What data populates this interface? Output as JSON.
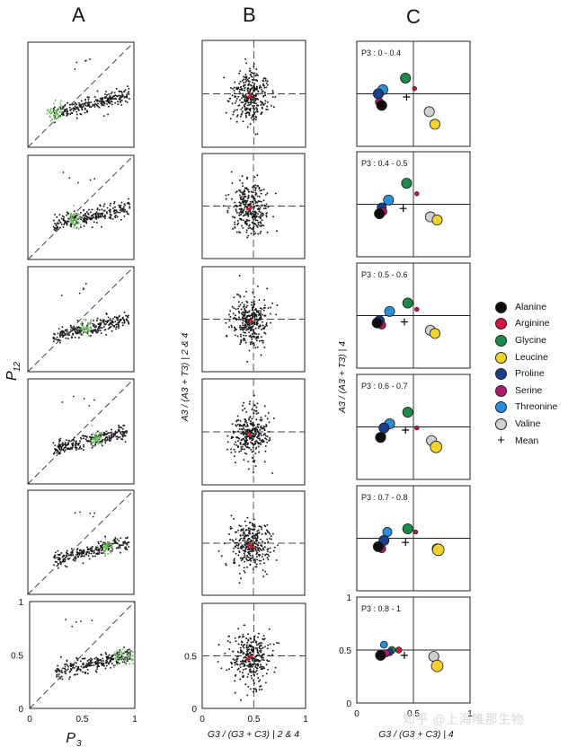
{
  "figure": {
    "column_letters": [
      "A",
      "B",
      "C"
    ]
  },
  "chart_data": [
    {
      "panel": "A",
      "type": "scatter",
      "xlabel": "P3",
      "ylabel": "P12",
      "xlim": [
        0,
        1
      ],
      "ylim": [
        0,
        1
      ],
      "x_ticks": [
        "0",
        "0.5",
        "1"
      ],
      "y_ticks": [
        "0",
        "0.5",
        "1"
      ],
      "reference_line": "y = x (dashed diagonal)",
      "series_colors": {
        "all_positions": "#1a1a1a",
        "highlight": "#6cbf5c"
      },
      "subplots": [
        {
          "highlight_x_range": [
            0.18,
            0.32
          ],
          "cloud_center": [
            0.5,
            0.45
          ]
        },
        {
          "highlight_x_range": [
            0.4,
            0.5
          ],
          "cloud_center": [
            0.52,
            0.45
          ]
        },
        {
          "highlight_x_range": [
            0.5,
            0.6
          ],
          "cloud_center": [
            0.53,
            0.46
          ]
        },
        {
          "highlight_x_range": [
            0.6,
            0.7
          ],
          "cloud_center": [
            0.55,
            0.46
          ]
        },
        {
          "highlight_x_range": [
            0.7,
            0.8
          ],
          "cloud_center": [
            0.57,
            0.47
          ]
        },
        {
          "highlight_x_range": [
            0.8,
            1.0
          ],
          "cloud_center": [
            0.58,
            0.47
          ]
        }
      ]
    },
    {
      "panel": "B",
      "type": "scatter",
      "xlabel": "G3 / (G3 + C3) | 2 & 4",
      "ylabel": "A3 / (A3 + T3) | 2 & 4",
      "xlim": [
        0,
        1
      ],
      "ylim": [
        0,
        1
      ],
      "x_ticks": [
        "0",
        "0.5",
        "1"
      ],
      "y_ticks": [
        "0",
        "0.5"
      ],
      "reference_lines": {
        "x": 0.5,
        "y": 0.5
      },
      "series_colors": {
        "points": "#1a1a1a",
        "center_mark": "#d11a2a"
      },
      "cloud_center": [
        0.47,
        0.48
      ],
      "subplot_count": 6
    },
    {
      "panel": "C",
      "type": "scatter",
      "xlabel": "G3 / (G3 + C3) | 4",
      "ylabel": "A3 / (A3 + T3) | 4",
      "xlim": [
        0,
        1
      ],
      "ylim": [
        0,
        1
      ],
      "x_ticks": [
        "0",
        "0.5",
        "1"
      ],
      "y_ticks": [
        "0",
        "0.5",
        "1"
      ],
      "reference_lines": {
        "x": 0.5,
        "y": 0.5
      },
      "legend": [
        {
          "name": "Alanine",
          "color": "#0d0d0d"
        },
        {
          "name": "Arginine",
          "color": "#d4143c"
        },
        {
          "name": "Glycine",
          "color": "#1e8a48"
        },
        {
          "name": "Leucine",
          "color": "#f1d22e"
        },
        {
          "name": "Proline",
          "color": "#1a3e8e"
        },
        {
          "name": "Serine",
          "color": "#b0196b"
        },
        {
          "name": "Threonine",
          "color": "#2a8ed8"
        },
        {
          "name": "Valine",
          "color": "#cfcfd6"
        },
        {
          "name": "Mean",
          "color": "#000000",
          "marker": "+"
        }
      ],
      "subplots": [
        {
          "label": "P3 : 0 - 0.4",
          "points": [
            {
              "aa": "Glycine",
              "x": 0.43,
              "y": 0.65,
              "size": 1.0
            },
            {
              "aa": "Arginine",
              "x": 0.51,
              "y": 0.55,
              "size": 0.4
            },
            {
              "aa": "Threonine",
              "x": 0.23,
              "y": 0.54,
              "size": 1.0
            },
            {
              "aa": "Proline",
              "x": 0.19,
              "y": 0.5,
              "size": 1.0
            },
            {
              "aa": "Serine",
              "x": 0.2,
              "y": 0.42,
              "size": 0.8
            },
            {
              "aa": "Alanine",
              "x": 0.22,
              "y": 0.39,
              "size": 1.0
            },
            {
              "aa": "Valine",
              "x": 0.64,
              "y": 0.33,
              "size": 1.0
            },
            {
              "aa": "Leucine",
              "x": 0.69,
              "y": 0.21,
              "size": 1.0
            }
          ],
          "mean": [
            0.44,
            0.47
          ]
        },
        {
          "label": "P3 : 0.4 - 0.5",
          "points": [
            {
              "aa": "Glycine",
              "x": 0.44,
              "y": 0.7,
              "size": 1.0
            },
            {
              "aa": "Arginine",
              "x": 0.53,
              "y": 0.6,
              "size": 0.4
            },
            {
              "aa": "Threonine",
              "x": 0.28,
              "y": 0.54,
              "size": 1.0
            },
            {
              "aa": "Proline",
              "x": 0.22,
              "y": 0.47,
              "size": 0.9
            },
            {
              "aa": "Serine",
              "x": 0.23,
              "y": 0.43,
              "size": 0.8
            },
            {
              "aa": "Alanine",
              "x": 0.2,
              "y": 0.41,
              "size": 1.0
            },
            {
              "aa": "Valine",
              "x": 0.65,
              "y": 0.38,
              "size": 1.0
            },
            {
              "aa": "Leucine",
              "x": 0.71,
              "y": 0.35,
              "size": 1.0
            }
          ],
          "mean": [
            0.41,
            0.46
          ]
        },
        {
          "label": "P3 : 0.5 - 0.6",
          "points": [
            {
              "aa": "Glycine",
              "x": 0.45,
              "y": 0.62,
              "size": 1.0
            },
            {
              "aa": "Arginine",
              "x": 0.53,
              "y": 0.56,
              "size": 0.4
            },
            {
              "aa": "Threonine",
              "x": 0.29,
              "y": 0.54,
              "size": 1.0
            },
            {
              "aa": "Proline",
              "x": 0.2,
              "y": 0.45,
              "size": 1.0
            },
            {
              "aa": "Serine",
              "x": 0.22,
              "y": 0.41,
              "size": 0.8
            },
            {
              "aa": "Alanine",
              "x": 0.18,
              "y": 0.43,
              "size": 1.0
            },
            {
              "aa": "Valine",
              "x": 0.65,
              "y": 0.36,
              "size": 1.0
            },
            {
              "aa": "Leucine",
              "x": 0.69,
              "y": 0.33,
              "size": 1.0
            }
          ],
          "mean": [
            0.42,
            0.44
          ]
        },
        {
          "label": "P3 : 0.6 - 0.7",
          "points": [
            {
              "aa": "Glycine",
              "x": 0.45,
              "y": 0.64,
              "size": 1.0
            },
            {
              "aa": "Arginine",
              "x": 0.53,
              "y": 0.49,
              "size": 0.4
            },
            {
              "aa": "Threonine",
              "x": 0.29,
              "y": 0.53,
              "size": 1.0
            },
            {
              "aa": "Proline",
              "x": 0.24,
              "y": 0.49,
              "size": 1.0
            },
            {
              "aa": "Serine",
              "x": 0.22,
              "y": 0.41,
              "size": 0.8
            },
            {
              "aa": "Alanine",
              "x": 0.21,
              "y": 0.4,
              "size": 1.0
            },
            {
              "aa": "Valine",
              "x": 0.66,
              "y": 0.37,
              "size": 1.0
            },
            {
              "aa": "Leucine",
              "x": 0.7,
              "y": 0.31,
              "size": 1.15
            }
          ],
          "mean": [
            0.43,
            0.47
          ]
        },
        {
          "label": "P3 : 0.7 - 0.8",
          "points": [
            {
              "aa": "Glycine",
              "x": 0.45,
              "y": 0.59,
              "size": 1.0
            },
            {
              "aa": "Arginine",
              "x": 0.52,
              "y": 0.56,
              "size": 0.4
            },
            {
              "aa": "Threonine",
              "x": 0.27,
              "y": 0.56,
              "size": 0.9
            },
            {
              "aa": "Proline",
              "x": 0.24,
              "y": 0.48,
              "size": 1.0
            },
            {
              "aa": "Serine",
              "x": 0.22,
              "y": 0.4,
              "size": 0.8
            },
            {
              "aa": "Alanine",
              "x": 0.19,
              "y": 0.42,
              "size": 1.0
            },
            {
              "aa": "Valine",
              "x": 0.71,
              "y": 0.4,
              "size": 1.0
            },
            {
              "aa": "Leucine",
              "x": 0.72,
              "y": 0.39,
              "size": 1.15
            }
          ],
          "mean": [
            0.43,
            0.46
          ]
        },
        {
          "label": "P3 : 0.8 - 1",
          "points": [
            {
              "aa": "Threonine",
              "x": 0.24,
              "y": 0.55,
              "size": 0.7
            },
            {
              "aa": "Glycine",
              "x": 0.31,
              "y": 0.5,
              "size": 0.7
            },
            {
              "aa": "Proline",
              "x": 0.29,
              "y": 0.48,
              "size": 0.7
            },
            {
              "aa": "Arginine",
              "x": 0.37,
              "y": 0.5,
              "size": 0.6
            },
            {
              "aa": "Serine",
              "x": 0.26,
              "y": 0.47,
              "size": 0.7
            },
            {
              "aa": "Alanine",
              "x": 0.21,
              "y": 0.45,
              "size": 1.0
            },
            {
              "aa": "Valine",
              "x": 0.68,
              "y": 0.44,
              "size": 1.0
            },
            {
              "aa": "Leucine",
              "x": 0.71,
              "y": 0.35,
              "size": 1.15
            }
          ],
          "mean": [
            0.42,
            0.45
          ]
        }
      ]
    }
  ],
  "watermark": "知乎 @上海唯那生物"
}
